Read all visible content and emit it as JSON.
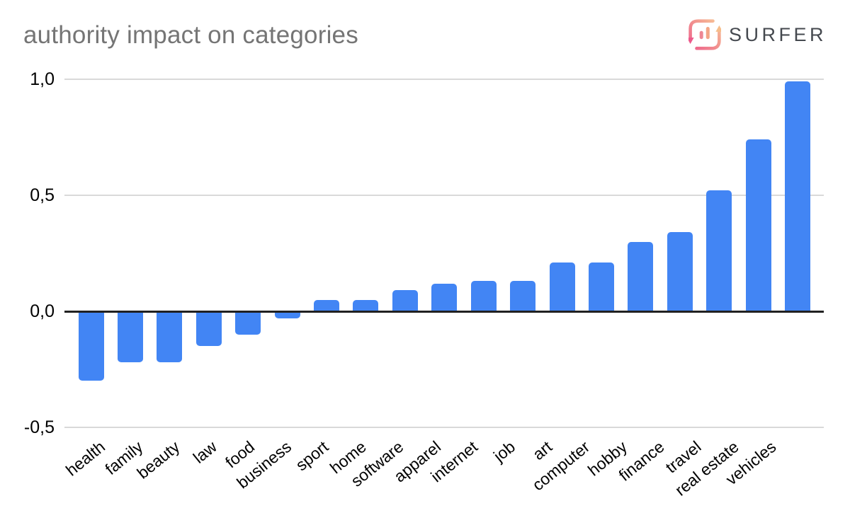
{
  "title": "authority impact on categories",
  "logo": {
    "brand": "SURFER",
    "icon": "surfer-cycle-bars-icon"
  },
  "chart_data": {
    "type": "bar",
    "title": "authority impact on categories",
    "categories": [
      "health",
      "family",
      "beauty",
      "law",
      "food",
      "business",
      "sport",
      "home",
      "software",
      "apparel",
      "internet",
      "job",
      "art",
      "computer",
      "hobby",
      "finance",
      "travel",
      "real estate",
      "vehicles"
    ],
    "values": [
      -0.3,
      -0.22,
      -0.22,
      -0.15,
      -0.1,
      -0.03,
      0.05,
      0.05,
      0.09,
      0.12,
      0.13,
      0.13,
      0.21,
      0.21,
      0.3,
      0.34,
      0.52,
      0.74,
      0.99
    ],
    "xlabel": "",
    "ylabel": "",
    "ylim": [
      -0.5,
      1.0
    ],
    "y_ticks": [
      {
        "label": "1,0",
        "value": 1.0
      },
      {
        "label": "0,5",
        "value": 0.5
      },
      {
        "label": "0,0",
        "value": 0.0
      },
      {
        "label": "-0,5",
        "value": -0.5
      }
    ],
    "decimal_separator": ",",
    "grid": "horizontal-only",
    "legend": "none",
    "bar_color": "#4285f4",
    "x_label_rotation_deg": -39
  },
  "colors": {
    "bar": "#4285f4",
    "title_text": "#757575",
    "axis_baseline": "#212121",
    "gridline": "#d9d9d9",
    "tick_text": "#000000",
    "logo_text": "#45494f",
    "logo_gradient_pink": "#ed5a8c",
    "logo_gradient_salmon": "#f2958f",
    "logo_gradient_peach": "#f8cd98"
  }
}
